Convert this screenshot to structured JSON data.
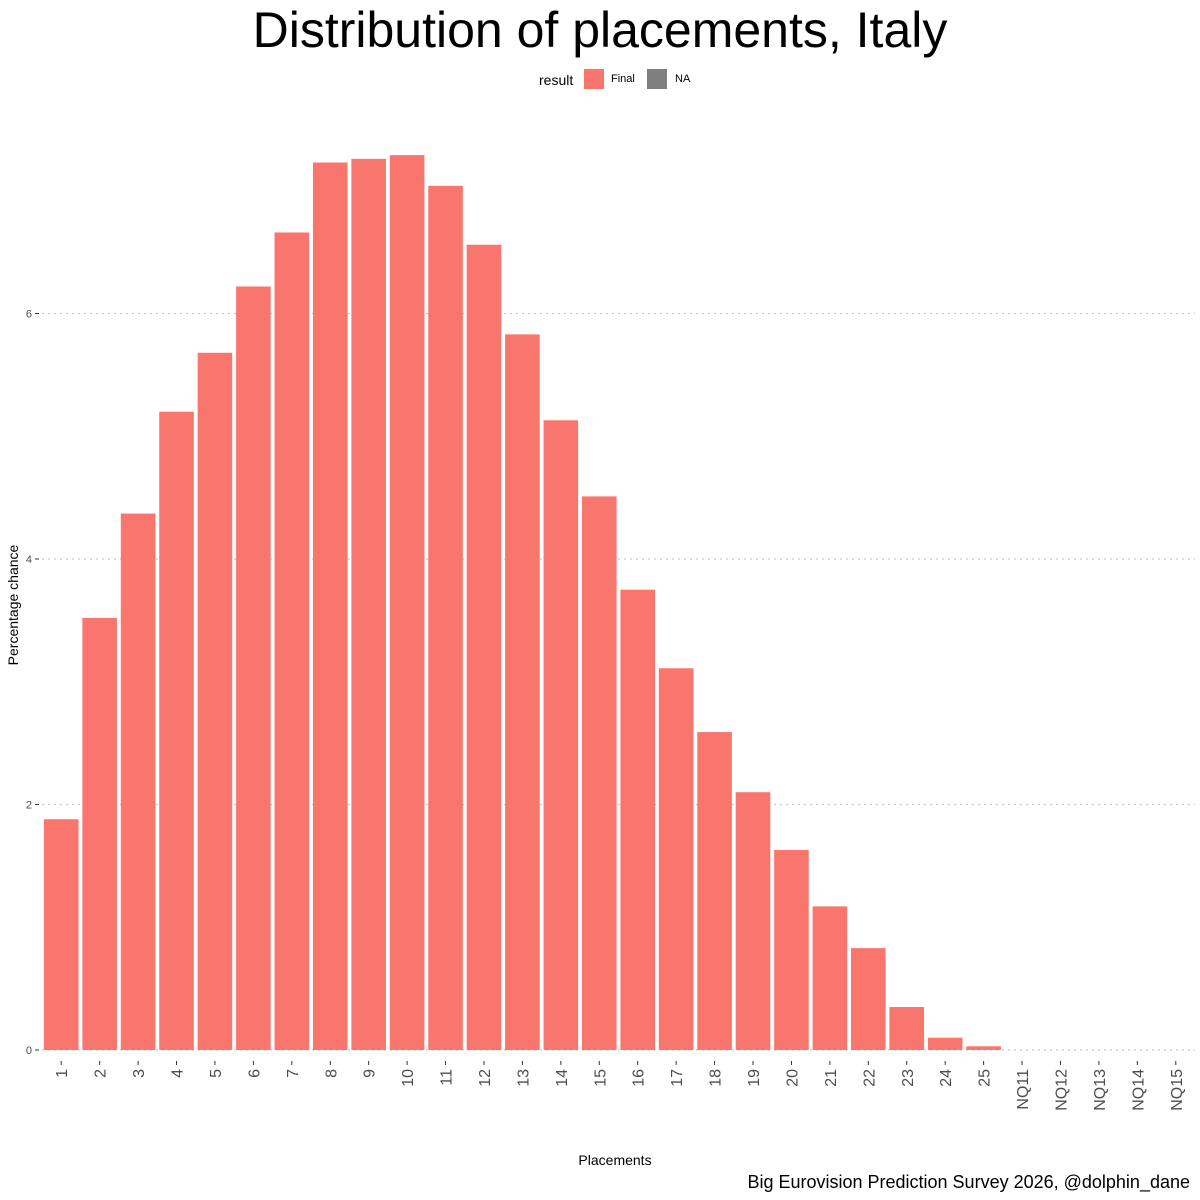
{
  "chart_data": {
    "type": "bar",
    "title": "Distribution of placements, Italy",
    "xlabel": "Placements",
    "ylabel": "Percentage chance",
    "caption": "Big Eurovision Prediction Survey 2026, @dolphin_dane",
    "legend": {
      "title": "result",
      "placement": "top",
      "entries": [
        {
          "label": "Final",
          "color": "#F8766D"
        },
        {
          "label": "NA",
          "color": "#7F7F7F"
        }
      ]
    },
    "categories": [
      "1",
      "2",
      "3",
      "4",
      "5",
      "6",
      "7",
      "8",
      "9",
      "10",
      "11",
      "12",
      "13",
      "14",
      "15",
      "16",
      "17",
      "18",
      "19",
      "20",
      "21",
      "22",
      "23",
      "24",
      "25",
      "NQ11",
      "NQ12",
      "NQ13",
      "NQ14",
      "NQ15"
    ],
    "series": [
      {
        "name": "Final",
        "color": "#F8766D",
        "values": [
          1.88,
          3.52,
          4.37,
          5.2,
          5.68,
          6.22,
          6.66,
          7.23,
          7.26,
          7.29,
          7.04,
          6.56,
          5.83,
          5.13,
          4.51,
          3.75,
          3.11,
          2.59,
          2.1,
          1.63,
          1.17,
          0.83,
          0.35,
          0.1,
          0.03,
          0,
          0,
          0,
          0,
          0
        ]
      }
    ],
    "yticks": [
      0,
      2,
      4,
      6
    ],
    "ylim": [
      0,
      7.6
    ],
    "grid": "horizontal dotted major lines",
    "theme": "minimal"
  }
}
